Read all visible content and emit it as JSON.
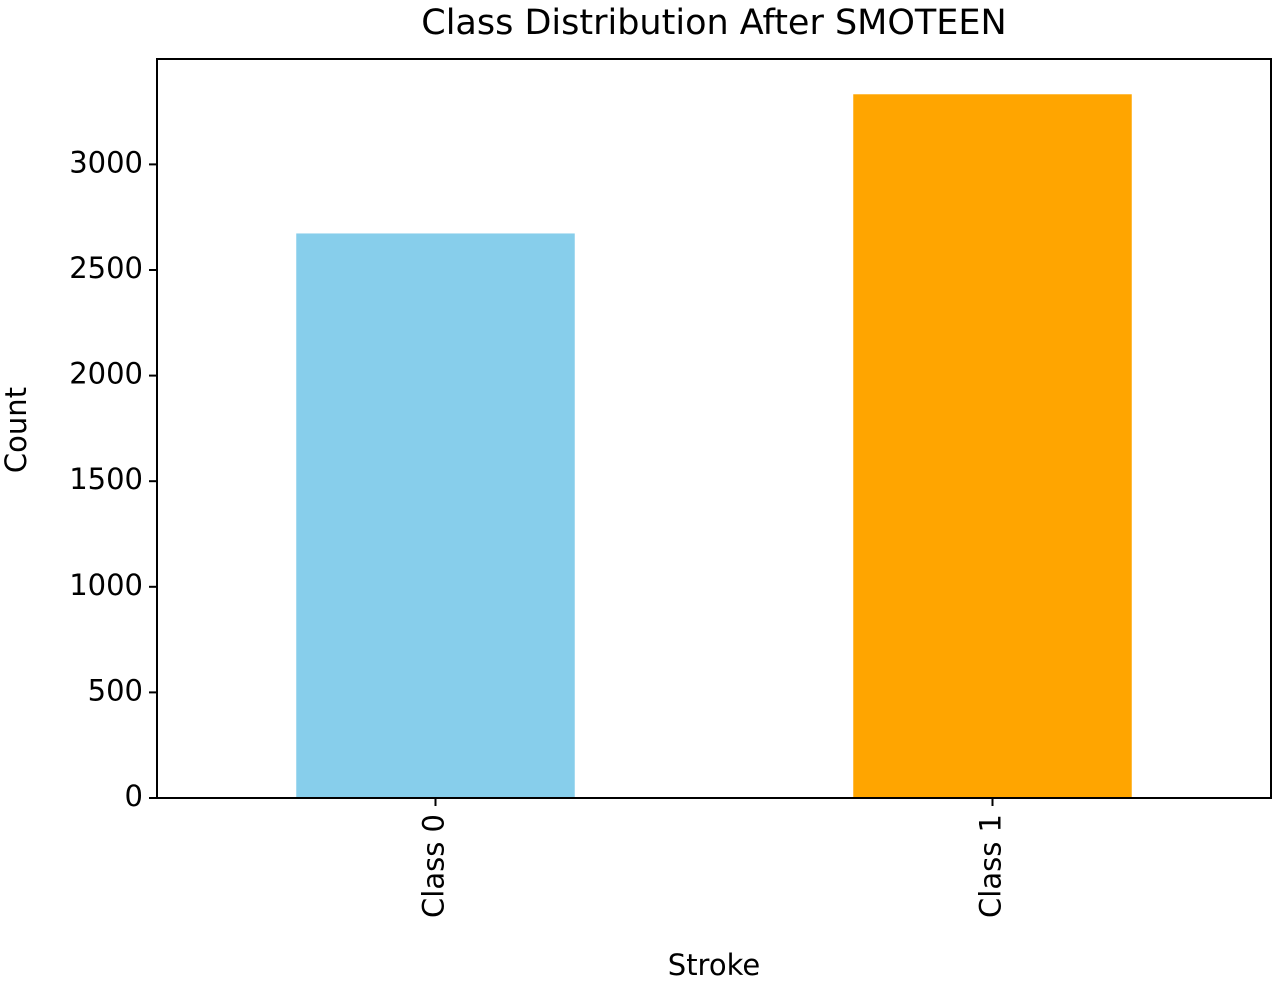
{
  "chart_data": {
    "type": "bar",
    "title": "Class Distribution After SMOTEEN",
    "x_label": "Stroke",
    "y_label": "Count",
    "categories": [
      "Class 0",
      "Class 1"
    ],
    "values": [
      2673,
      3332
    ],
    "colors": [
      "#87ceeb",
      "#ffa500"
    ],
    "ylim": [
      0,
      3499
    ],
    "yticks": [
      0,
      500,
      1000,
      1500,
      2000,
      2500,
      3000
    ],
    "grid": false
  }
}
